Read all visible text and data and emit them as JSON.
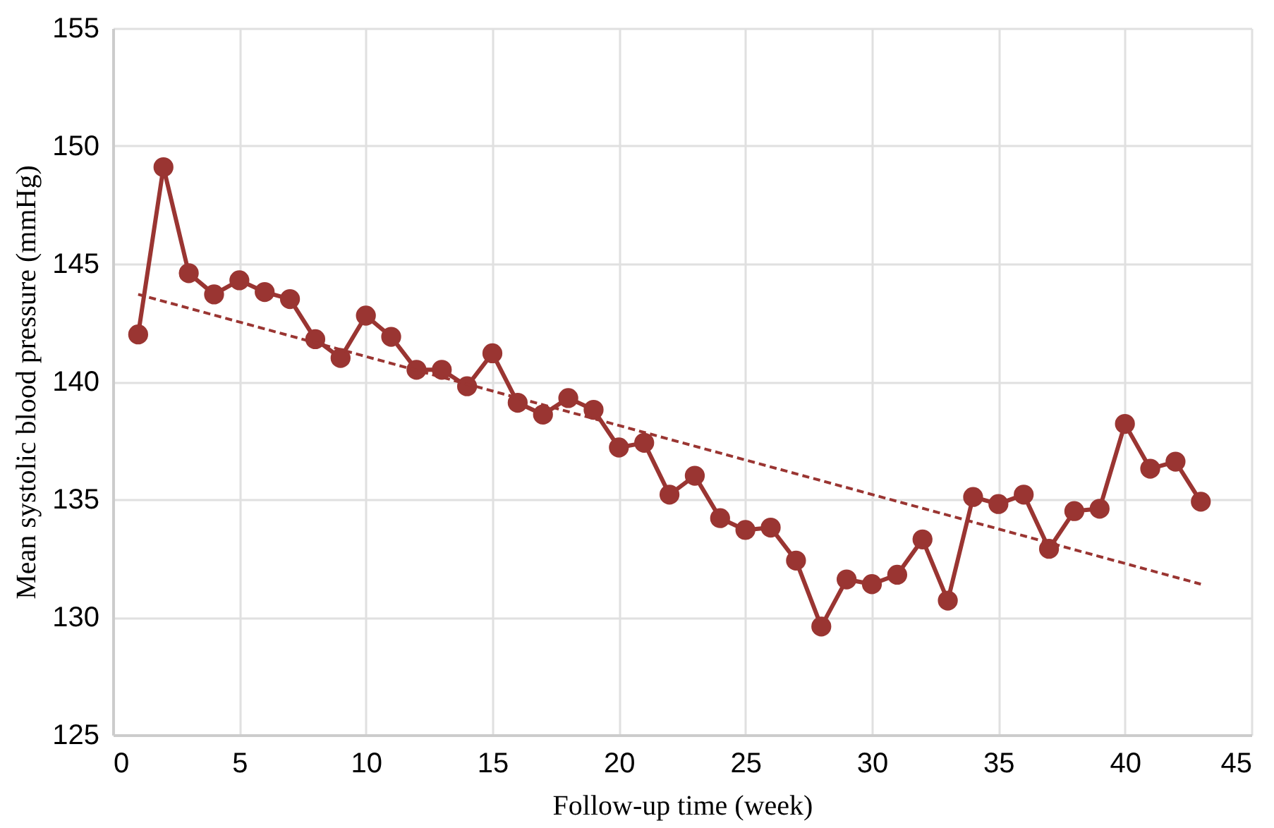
{
  "chart_data": {
    "type": "line",
    "xlabel": "Follow-up time (week)",
    "ylabel": "Mean systolic blood pressure (mmHg)",
    "x": [
      1,
      2,
      3,
      4,
      5,
      6,
      7,
      8,
      9,
      10,
      11,
      12,
      13,
      14,
      15,
      16,
      17,
      18,
      19,
      20,
      21,
      22,
      23,
      24,
      25,
      26,
      27,
      28,
      29,
      30,
      31,
      32,
      33,
      34,
      35,
      36,
      37,
      38,
      39,
      40,
      41,
      42,
      43
    ],
    "series": [
      {
        "color": "#9a3532",
        "marker": "circle",
        "line_style": "solid",
        "values": [
          142.0,
          149.1,
          144.6,
          143.7,
          144.3,
          143.8,
          143.5,
          141.8,
          141.0,
          142.8,
          141.9,
          140.5,
          140.5,
          139.8,
          141.2,
          139.1,
          138.6,
          139.3,
          138.8,
          137.2,
          137.4,
          135.2,
          136.0,
          134.2,
          133.7,
          133.8,
          132.4,
          129.6,
          131.6,
          131.4,
          131.8,
          133.3,
          130.7,
          135.1,
          134.8,
          135.2,
          132.9,
          134.5,
          134.6,
          138.2,
          136.3,
          136.6,
          134.9
        ]
      },
      {
        "type": "line",
        "color": "#9a3532",
        "marker": "none",
        "line_style": "dashed",
        "x": [
          1,
          43
        ],
        "values": [
          143.7,
          131.4
        ]
      }
    ],
    "xlim": [
      0,
      45
    ],
    "xticks": [
      0,
      5,
      10,
      15,
      20,
      25,
      30,
      35,
      40,
      45
    ],
    "ylim": [
      125,
      155
    ],
    "yticks": [
      125,
      130,
      135,
      140,
      145,
      150,
      155
    ],
    "grid": true
  }
}
